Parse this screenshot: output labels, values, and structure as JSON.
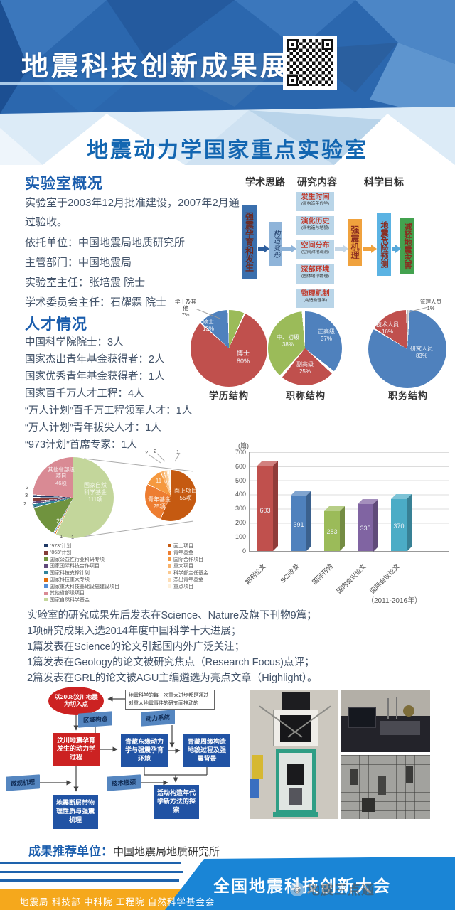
{
  "header": {
    "title": "地震科技创新成果展",
    "subtitle": "地震动力学国家重点实验室"
  },
  "overview": {
    "heading": "实验室概况",
    "para": "实验室于2003年12月批准建设，2007年2月通过验收。",
    "items": [
      "依托单位：中国地震局地质研究所",
      "主管部门：中国地震局",
      "实验室主任：张培震 院士",
      "学术委员会主任：石耀霖 院士"
    ]
  },
  "research_flow": {
    "col1": "学术思路",
    "col2": "研究内容",
    "col3": "科学目标",
    "box_a": "强震孕育和发生",
    "box_b": "构造变形",
    "contents": [
      {
        "t": "发生时间",
        "s": "(新构造年代学)"
      },
      {
        "t": "演化历史",
        "s": "(新构造与地貌)"
      },
      {
        "t": "空间分布",
        "s": "(空间对地观测)"
      },
      {
        "t": "深部环境",
        "s": "(固体地球物理)"
      },
      {
        "t": "物理机制",
        "s": "(构造物理学)"
      }
    ],
    "box_d": "强震机理",
    "box_e": "地震危险预测",
    "box_f": "减轻地震灾害"
  },
  "talent": {
    "heading": "人才情况",
    "lines": [
      "中国科学院院士：3人",
      "国家杰出青年基金获得者：2人",
      "国家优秀青年基金获得者：1人",
      "国家百千万人才工程：4人",
      "“万人计划”百千万工程领军人才：1人",
      "“万人计划”青年拔尖人才：1人",
      "“973计划”首席专家：1人"
    ]
  },
  "chart_data": [
    {
      "type": "pie",
      "title": "学历结构",
      "labels": [
        "博士",
        "硕士",
        "学士及其他"
      ],
      "values": [
        80,
        13,
        7
      ],
      "pct": [
        "80%",
        "13%",
        "7%"
      ],
      "colors": [
        "#c0504d",
        "#4f81bd",
        "#9bbb59"
      ]
    },
    {
      "type": "pie",
      "title": "职称结构",
      "labels": [
        "正高级",
        "副高级",
        "中、初级"
      ],
      "values": [
        37,
        25,
        38
      ],
      "pct": [
        "37%",
        "25%",
        "38%"
      ],
      "colors": [
        "#4f81bd",
        "#c0504d",
        "#9bbb59"
      ]
    },
    {
      "type": "pie",
      "title": "职务结构",
      "labels": [
        "研究人员",
        "技术人员",
        "管理人员"
      ],
      "values": [
        83,
        16,
        1
      ],
      "pct": [
        "83%",
        "16%",
        "1%"
      ],
      "colors": [
        "#4f81bd",
        "#c0504d",
        "#bfbfbf"
      ]
    },
    {
      "type": "pie-of-pie",
      "title": "",
      "main": {
        "labels": [
          "“973”计划",
          "“863”计划",
          "国家公益性行业科研专项",
          "国家国际科技合作项目",
          "国家科技支撑计划",
          "国家科技重大专项",
          "国家重大科技基础设施建设项目",
          "其他省部级项目",
          "国家自然科学基金"
        ],
        "values": [
          2,
          3,
          25,
          2,
          3,
          1,
          1,
          46,
          111
        ],
        "colors": [
          "#1f3864",
          "#843c39",
          "#70933e",
          "#604a7b",
          "#31849b",
          "#e36c0a",
          "#558ed5",
          "#d98a94",
          "#c3d69b"
        ]
      },
      "secondary": {
        "labels": [
          "面上项目",
          "青年基金",
          "国际合作项目",
          "重大项目",
          "科学部主任基金",
          "杰出青年基金",
          "重点项目"
        ],
        "values": [
          55,
          25,
          11,
          2,
          2,
          1,
          1
        ],
        "colors": [
          "#c55a11",
          "#ed7d31",
          "#f5993f",
          "#f8b26a",
          "#fbc88f",
          "#fdddb5",
          "#fef0da"
        ]
      },
      "slice_texts": {
        "pink_1": "其他省部级",
        "pink_2": "项目",
        "pink_3": "46项",
        "green_1": "国家自然",
        "green_2": "科学基金",
        "green_3": "111项",
        "dgreen": "25",
        "co_l1": "2",
        "co_l2": "3",
        "co_l3": "2",
        "co_l4": "3",
        "co_b1": "1",
        "co_b2": "1",
        "sec1_1": "面上项目",
        "sec1_2": "55项",
        "sec2_1": "青年基金",
        "sec2_2": "25项",
        "sec3": "11",
        "sec_co1": "2",
        "sec_co2": "2",
        "sec_co3": "1"
      }
    },
    {
      "type": "bar",
      "categories": [
        "期刊论文",
        "SCI收录",
        "国际刊物",
        "国内会议论文",
        "国际会议论文"
      ],
      "values": [
        603,
        391,
        283,
        335,
        370
      ],
      "colors": [
        "#c0504d",
        "#4f81bd",
        "#9bbb59",
        "#8064a2",
        "#4bacc6"
      ],
      "unit": "(篇)",
      "ylim": [
        0,
        700
      ],
      "yticks": [
        "700",
        "600",
        "500",
        "400",
        "300",
        "200",
        "100",
        "0"
      ],
      "note": "（2011-2016年）"
    }
  ],
  "achievements": {
    "lines": [
      "实验室的研究成果先后发表在Science、Nature及旗下刊物9篇；",
      "1项研究成果入选2014年度中国科学十大进展；",
      "1篇发表在Science的论文引起国内外广泛关注；",
      "1篇发表在Geology的论文被研究焦点（Research Focus)点评；",
      "2篇发表在GRL的论文被AGU主编遴选为亮点文章（Highlight）。"
    ]
  },
  "case_flow": {
    "ellipse": "以2008汶川地震为切入点",
    "note": "地震科学的每一次重大进步都是通过对重大地震事件的研究而推动的",
    "flags": [
      "区域构造",
      "动力系统",
      "微观机理",
      "技术瓶颈"
    ],
    "boxes": [
      "汶川地震孕育发生的动力学过程",
      "青藏东缘动力学与强震孕育环境",
      "青藏周缘构造地貌过程及强震背景",
      "活动构造年代学新方法的探索",
      "地震断层带物理性质与强震机理"
    ]
  },
  "recommend": {
    "label": "成果推荐单位：",
    "value": "中国地震局地质研究所"
  },
  "footer": {
    "banner": "全国地震科技创新大会",
    "orgs": "地震局  科技部  中科院  工程院  自然科学基金会",
    "watermark": "地震三点通"
  }
}
